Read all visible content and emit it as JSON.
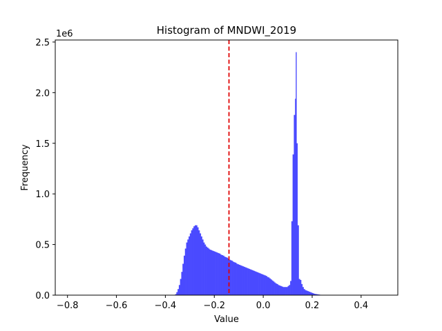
{
  "chart_data": {
    "type": "bar",
    "title": "Histogram of MNDWI_2019",
    "xlabel": "Value",
    "ylabel": "Frequency",
    "y_offset_label": "1e6",
    "xlim": [
      -0.85,
      0.55
    ],
    "ylim": [
      0,
      2.52
    ],
    "x_ticks": [
      -0.8,
      -0.6,
      -0.4,
      -0.2,
      0.0,
      0.2,
      0.4
    ],
    "x_tick_labels": [
      "−0.8",
      "−0.6",
      "−0.4",
      "−0.2",
      "0.0",
      "0.2",
      "0.4"
    ],
    "y_ticks": [
      0,
      0.5,
      1.0,
      1.5,
      2.0,
      2.5
    ],
    "y_tick_labels": [
      "0.0",
      "0.5",
      "1.0",
      "1.5",
      "2.0",
      "2.5"
    ],
    "bar_color": "#4a4aff",
    "threshold_line": {
      "x": -0.14,
      "color": "#e00000",
      "style": "dashed"
    },
    "series": [
      {
        "values": [
          [
            -0.36,
            0.01
          ],
          [
            -0.355,
            0.03
          ],
          [
            -0.35,
            0.06
          ],
          [
            -0.345,
            0.1
          ],
          [
            -0.34,
            0.16
          ],
          [
            -0.335,
            0.23
          ],
          [
            -0.33,
            0.31
          ],
          [
            -0.325,
            0.39
          ],
          [
            -0.32,
            0.46
          ],
          [
            -0.315,
            0.52
          ],
          [
            -0.31,
            0.55
          ],
          [
            -0.305,
            0.58
          ],
          [
            -0.3,
            0.61
          ],
          [
            -0.295,
            0.64
          ],
          [
            -0.29,
            0.66
          ],
          [
            -0.285,
            0.68
          ],
          [
            -0.28,
            0.69
          ],
          [
            -0.275,
            0.69
          ],
          [
            -0.27,
            0.67
          ],
          [
            -0.265,
            0.64
          ],
          [
            -0.26,
            0.61
          ],
          [
            -0.255,
            0.58
          ],
          [
            -0.25,
            0.55
          ],
          [
            -0.245,
            0.52
          ],
          [
            -0.24,
            0.5
          ],
          [
            -0.235,
            0.48
          ],
          [
            -0.23,
            0.47
          ],
          [
            -0.225,
            0.46
          ],
          [
            -0.22,
            0.45
          ],
          [
            -0.215,
            0.445
          ],
          [
            -0.21,
            0.44
          ],
          [
            -0.205,
            0.435
          ],
          [
            -0.2,
            0.43
          ],
          [
            -0.195,
            0.425
          ],
          [
            -0.19,
            0.42
          ],
          [
            -0.185,
            0.415
          ],
          [
            -0.18,
            0.41
          ],
          [
            -0.175,
            0.4
          ],
          [
            -0.17,
            0.395
          ],
          [
            -0.165,
            0.39
          ],
          [
            -0.16,
            0.38
          ],
          [
            -0.155,
            0.375
          ],
          [
            -0.15,
            0.37
          ],
          [
            -0.145,
            0.36
          ],
          [
            -0.14,
            0.35
          ],
          [
            -0.135,
            0.345
          ],
          [
            -0.13,
            0.34
          ],
          [
            -0.125,
            0.33
          ],
          [
            -0.12,
            0.325
          ],
          [
            -0.115,
            0.32
          ],
          [
            -0.11,
            0.31
          ],
          [
            -0.105,
            0.305
          ],
          [
            -0.1,
            0.3
          ],
          [
            -0.095,
            0.295
          ],
          [
            -0.09,
            0.29
          ],
          [
            -0.085,
            0.285
          ],
          [
            -0.08,
            0.28
          ],
          [
            -0.075,
            0.275
          ],
          [
            -0.07,
            0.27
          ],
          [
            -0.065,
            0.265
          ],
          [
            -0.06,
            0.26
          ],
          [
            -0.055,
            0.255
          ],
          [
            -0.05,
            0.25
          ],
          [
            -0.045,
            0.245
          ],
          [
            -0.04,
            0.24
          ],
          [
            -0.035,
            0.235
          ],
          [
            -0.03,
            0.23
          ],
          [
            -0.025,
            0.225
          ],
          [
            -0.02,
            0.22
          ],
          [
            -0.015,
            0.215
          ],
          [
            -0.01,
            0.21
          ],
          [
            -0.005,
            0.205
          ],
          [
            0.0,
            0.2
          ],
          [
            0.005,
            0.195
          ],
          [
            0.01,
            0.19
          ],
          [
            0.015,
            0.18
          ],
          [
            0.02,
            0.175
          ],
          [
            0.025,
            0.165
          ],
          [
            0.03,
            0.155
          ],
          [
            0.035,
            0.145
          ],
          [
            0.04,
            0.135
          ],
          [
            0.045,
            0.125
          ],
          [
            0.05,
            0.115
          ],
          [
            0.055,
            0.11
          ],
          [
            0.06,
            0.1
          ],
          [
            0.065,
            0.095
          ],
          [
            0.07,
            0.09
          ],
          [
            0.075,
            0.085
          ],
          [
            0.08,
            0.08
          ],
          [
            0.085,
            0.08
          ],
          [
            0.09,
            0.08
          ],
          [
            0.095,
            0.08
          ],
          [
            0.1,
            0.09
          ],
          [
            0.105,
            0.1
          ],
          [
            0.11,
            0.14
          ],
          [
            0.115,
            0.73
          ],
          [
            0.12,
            1.39
          ],
          [
            0.125,
            1.78
          ],
          [
            0.13,
            1.94
          ],
          [
            0.133,
            2.4
          ],
          [
            0.136,
            1.5
          ],
          [
            0.14,
            0.69
          ],
          [
            0.145,
            0.16
          ],
          [
            0.15,
            0.15
          ],
          [
            0.155,
            0.11
          ],
          [
            0.16,
            0.08
          ],
          [
            0.165,
            0.06
          ],
          [
            0.17,
            0.05
          ],
          [
            0.175,
            0.045
          ],
          [
            0.18,
            0.04
          ],
          [
            0.185,
            0.035
          ],
          [
            0.19,
            0.03
          ],
          [
            0.195,
            0.025
          ],
          [
            0.2,
            0.02
          ],
          [
            0.205,
            0.015
          ],
          [
            0.21,
            0.012
          ],
          [
            0.215,
            0.01
          ],
          [
            0.22,
            0.008
          ],
          [
            0.225,
            0.006
          ],
          [
            0.23,
            0.004
          ],
          [
            0.235,
            0.002
          ]
        ]
      }
    ]
  }
}
